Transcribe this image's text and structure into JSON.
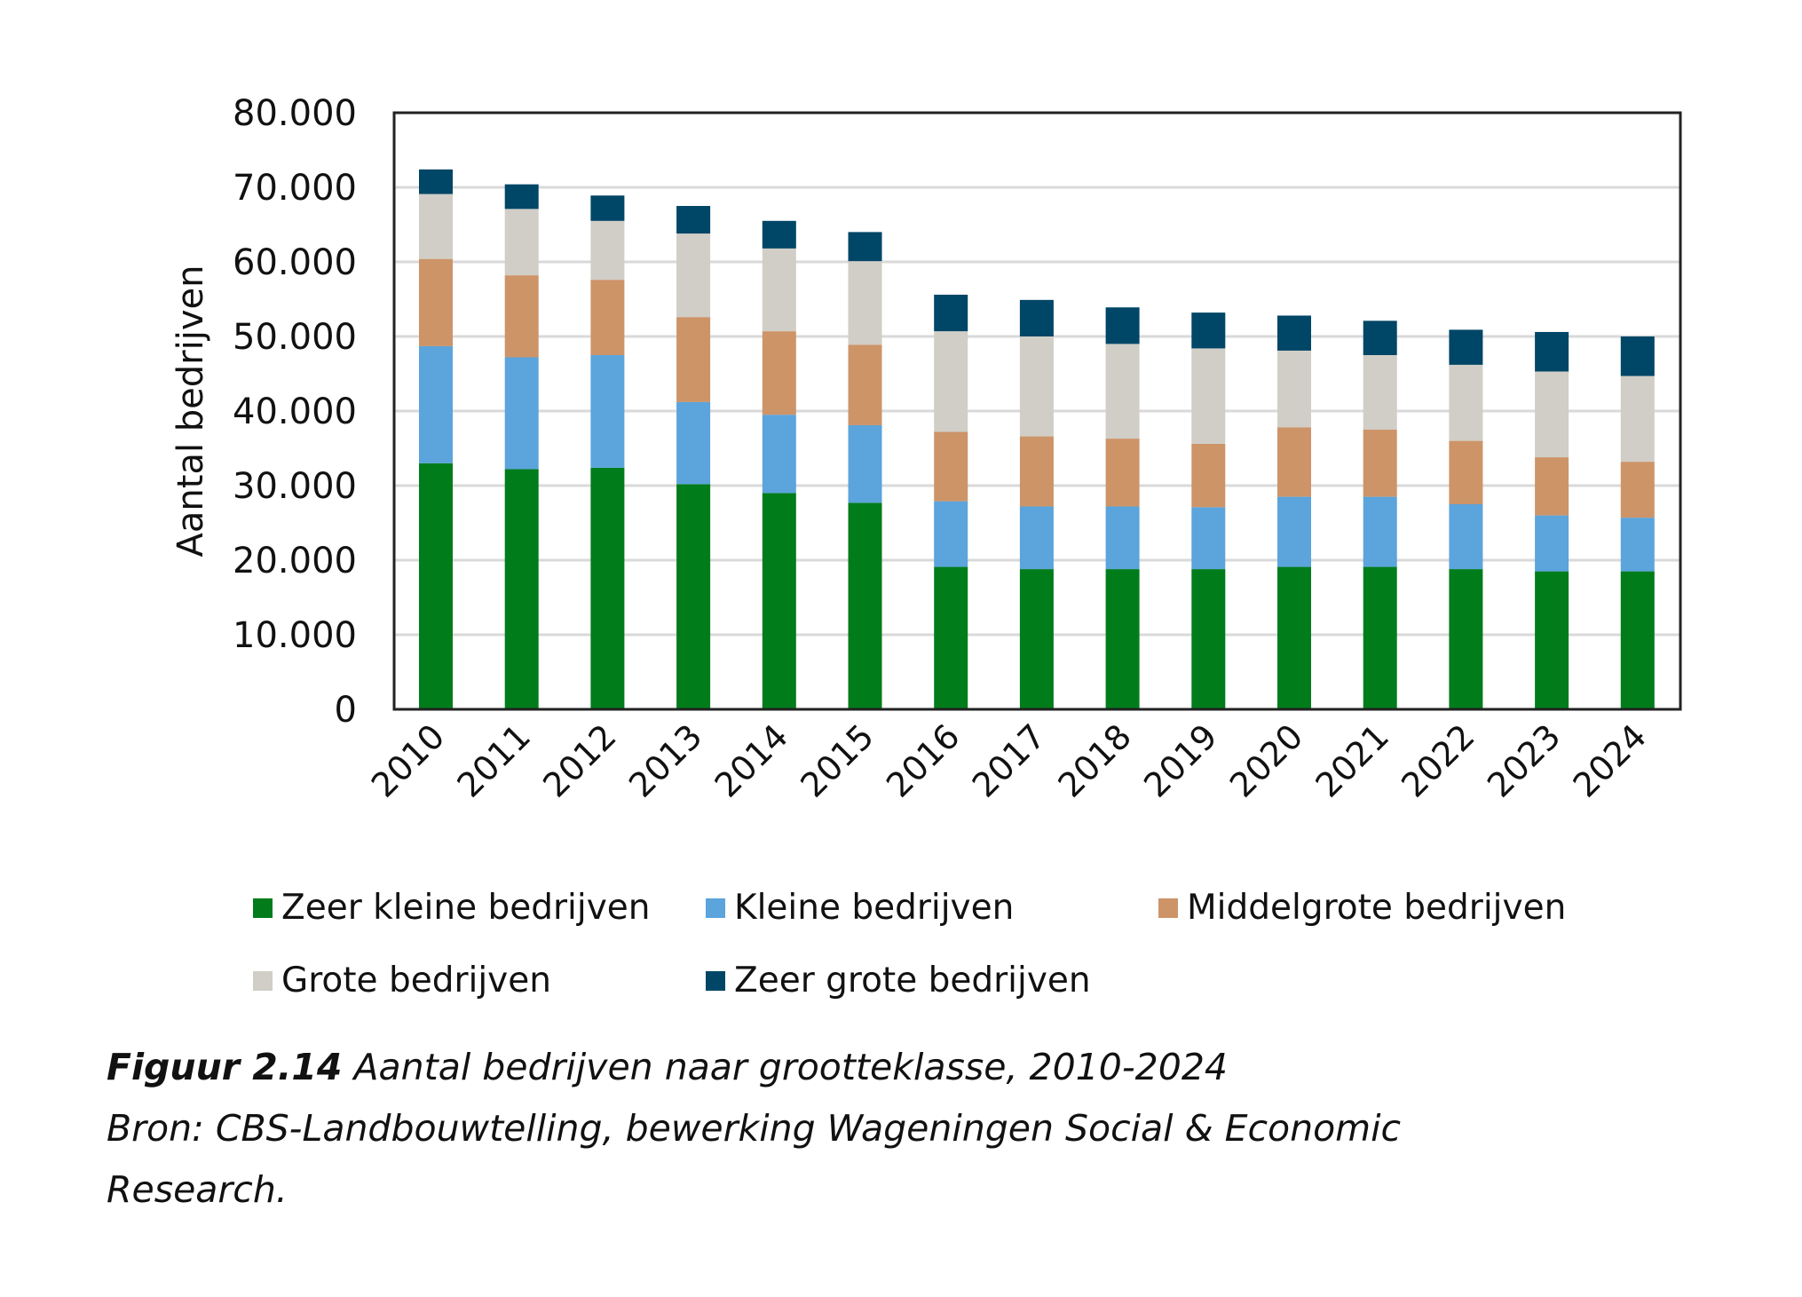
{
  "chart_data": {
    "type": "bar",
    "stacked": true,
    "categories": [
      "2010",
      "2011",
      "2012",
      "2013",
      "2014",
      "2015",
      "2016",
      "2017",
      "2018",
      "2019",
      "2020",
      "2021",
      "2022",
      "2023",
      "2024"
    ],
    "ylabel": "Aantal bedrijven",
    "xlabel": "",
    "ylim": [
      0,
      80000
    ],
    "yticks": [
      "0",
      "10.000",
      "20.000",
      "30.000",
      "40.000",
      "50.000",
      "60.000",
      "70.000",
      "80.000"
    ],
    "grid": true,
    "legend_position": "bottom",
    "series": [
      {
        "name": "Zeer kleine bedrijven",
        "color": "#007c1b",
        "values": [
          33000,
          32200,
          32400,
          30200,
          29000,
          27700,
          19100,
          18800,
          18800,
          18800,
          19100,
          19100,
          18800,
          18500,
          18500
        ]
      },
      {
        "name": "Kleine bedrijven",
        "color": "#5ba4dc",
        "values": [
          15700,
          15000,
          15100,
          11000,
          10500,
          10400,
          8800,
          8400,
          8400,
          8300,
          9400,
          9400,
          8700,
          7500,
          7200
        ]
      },
      {
        "name": "Middelgrote bedrijven",
        "color": "#cd9468",
        "values": [
          11700,
          11000,
          10100,
          11400,
          11200,
          10800,
          9300,
          9400,
          9100,
          8500,
          9300,
          9000,
          8500,
          7800,
          7500
        ]
      },
      {
        "name": "Grote bedrijven",
        "color": "#d0cec6",
        "values": [
          8700,
          8900,
          7900,
          11200,
          11100,
          11200,
          13500,
          13400,
          12700,
          12800,
          10300,
          10000,
          10200,
          11500,
          11500
        ]
      },
      {
        "name": "Zeer grote bedrijven",
        "color": "#004667",
        "values": [
          3300,
          3300,
          3400,
          3700,
          3700,
          3900,
          4900,
          4900,
          4900,
          4800,
          4700,
          4600,
          4700,
          5300,
          5300
        ]
      }
    ]
  },
  "caption": {
    "figure_label": "Figuur 2.14",
    "title": " Aantal bedrijven naar grootteklasse, 2010-2024",
    "source_line1": "Bron: CBS-Landbouwtelling, bewerking Wageningen Social & Economic",
    "source_line2": "Research."
  }
}
